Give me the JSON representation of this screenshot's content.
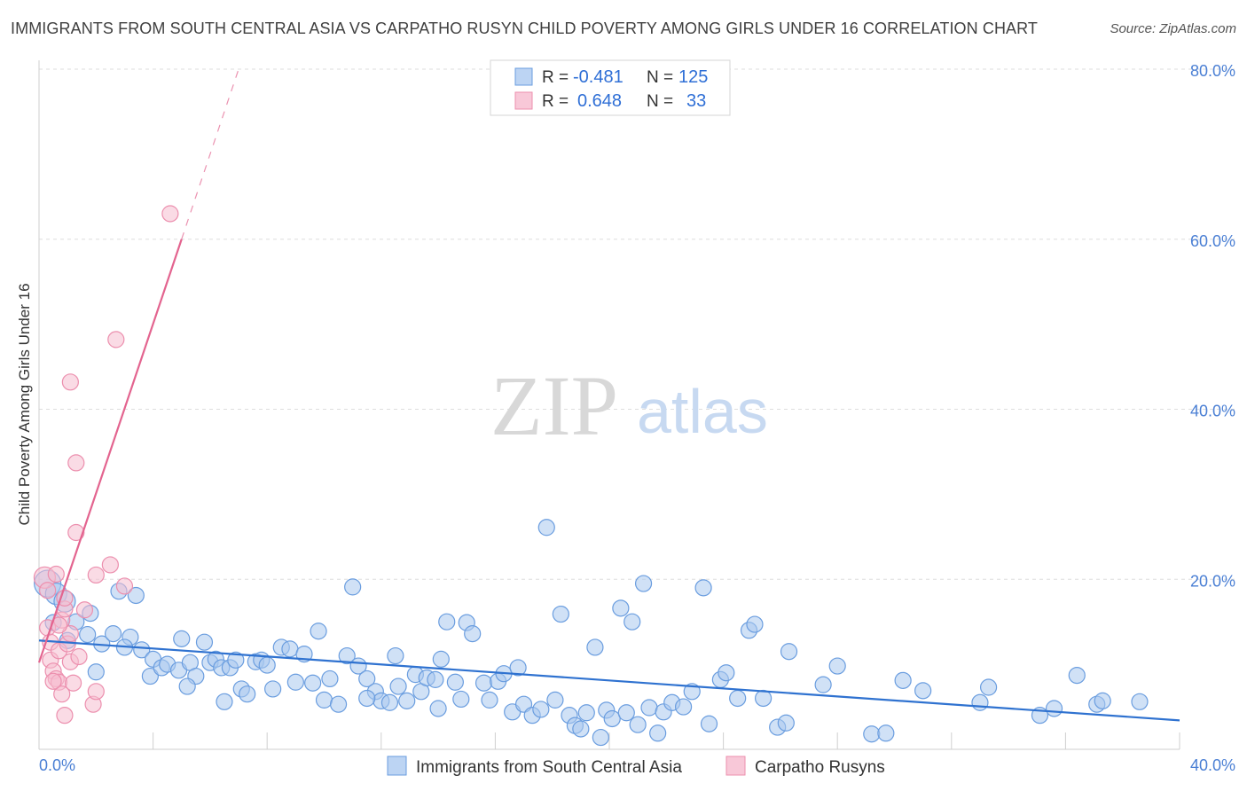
{
  "header": {
    "title": "IMMIGRANTS FROM SOUTH CENTRAL ASIA VS CARPATHO RUSYN CHILD POVERTY AMONG GIRLS UNDER 16 CORRELATION CHART",
    "source": "Source: ZipAtlas.com"
  },
  "watermark": {
    "zip": "ZIP",
    "atlas": "atlas"
  },
  "legend": {
    "rows": [
      {
        "r_label": "R =",
        "r_value": "-0.481",
        "n_label": "N =",
        "n_value": "125"
      },
      {
        "r_label": "R =",
        "r_value": "0.648",
        "n_label": "N =",
        "n_value": "33"
      }
    ]
  },
  "colors": {
    "blue_fill": "#a9c8ef",
    "blue_stroke": "#6a9ddf",
    "blue_line": "#2f72d0",
    "pink_fill": "#f6bdd0",
    "pink_stroke": "#ec8fae",
    "pink_line": "#e3648f",
    "grid": "#dddddd",
    "tick_text": "#4a7fd4"
  },
  "chart_data": {
    "type": "scatter",
    "title": "IMMIGRANTS FROM SOUTH CENTRAL ASIA VS CARPATHO RUSYN CHILD POVERTY AMONG GIRLS UNDER 16 CORRELATION CHART",
    "xlabel": "",
    "ylabel": "Child Poverty Among Girls Under 16",
    "xlim": [
      0,
      40
    ],
    "ylim": [
      0,
      80
    ],
    "x_tick_labels": [
      "0.0%",
      "40.0%"
    ],
    "y_ticks": [
      20,
      40,
      60,
      80
    ],
    "y_tick_labels": [
      "20.0%",
      "40.0%",
      "60.0%",
      "80.0%"
    ],
    "legend_position": "top-center",
    "series": [
      {
        "name": "Immigrants from South Central Asia",
        "color": "blue",
        "r": -0.481,
        "n": 125,
        "trend": {
          "x": [
            0,
            40
          ],
          "y": [
            12.8,
            3.4
          ],
          "dashed_extension": false
        },
        "points": [
          [
            0.3,
            19.5,
            3
          ],
          [
            0.6,
            18.3,
            2
          ],
          [
            0.9,
            17.4,
            2
          ],
          [
            1.3,
            15.0,
            1
          ],
          [
            1.7,
            13.5,
            1
          ],
          [
            1.8,
            16.0,
            1
          ],
          [
            2.2,
            12.4,
            1
          ],
          [
            2.6,
            13.6,
            1
          ],
          [
            3.2,
            13.2,
            1
          ],
          [
            3.4,
            18.1,
            1
          ],
          [
            3.0,
            12.0,
            1
          ],
          [
            3.6,
            11.7,
            1
          ],
          [
            3.9,
            8.6,
            1
          ],
          [
            4.0,
            10.6,
            1
          ],
          [
            4.3,
            9.6,
            1
          ],
          [
            4.5,
            10.0,
            1
          ],
          [
            4.9,
            9.3,
            1
          ],
          [
            5.0,
            13.0,
            1
          ],
          [
            5.3,
            10.2,
            1
          ],
          [
            5.5,
            8.6,
            1
          ],
          [
            5.8,
            12.6,
            1
          ],
          [
            6.0,
            10.2,
            1
          ],
          [
            6.2,
            10.6,
            1
          ],
          [
            6.4,
            9.6,
            1
          ],
          [
            6.7,
            9.6,
            1
          ],
          [
            6.9,
            10.5,
            1
          ],
          [
            7.1,
            7.1,
            1
          ],
          [
            7.3,
            6.5,
            1
          ],
          [
            7.6,
            10.3,
            1
          ],
          [
            7.8,
            10.5,
            1
          ],
          [
            8.0,
            9.9,
            1
          ],
          [
            8.2,
            7.1,
            1
          ],
          [
            8.5,
            12.0,
            1
          ],
          [
            8.8,
            11.8,
            1
          ],
          [
            9.0,
            7.9,
            1
          ],
          [
            9.3,
            11.2,
            1
          ],
          [
            9.6,
            7.8,
            1
          ],
          [
            9.8,
            13.9,
            1
          ],
          [
            10.0,
            5.8,
            1
          ],
          [
            10.2,
            8.3,
            1
          ],
          [
            10.5,
            5.3,
            1
          ],
          [
            10.8,
            11.0,
            1
          ],
          [
            11.0,
            19.1,
            1
          ],
          [
            11.2,
            9.8,
            1
          ],
          [
            11.5,
            8.3,
            1
          ],
          [
            11.8,
            6.8,
            1
          ],
          [
            12.0,
            5.7,
            1
          ],
          [
            12.3,
            5.5,
            1
          ],
          [
            12.6,
            7.4,
            1
          ],
          [
            12.9,
            5.7,
            1
          ],
          [
            13.2,
            8.8,
            1
          ],
          [
            13.4,
            6.8,
            1
          ],
          [
            13.6,
            8.4,
            1
          ],
          [
            13.9,
            8.2,
            1
          ],
          [
            14.1,
            10.6,
            1
          ],
          [
            14.3,
            15.0,
            1
          ],
          [
            14.6,
            7.9,
            1
          ],
          [
            14.8,
            5.9,
            1
          ],
          [
            15.0,
            14.9,
            1
          ],
          [
            15.2,
            13.6,
            1
          ],
          [
            15.6,
            7.8,
            1
          ],
          [
            15.8,
            5.8,
            1
          ],
          [
            16.1,
            8.0,
            1
          ],
          [
            16.3,
            8.9,
            1
          ],
          [
            16.6,
            4.4,
            1
          ],
          [
            16.8,
            9.6,
            1
          ],
          [
            17.0,
            5.3,
            1
          ],
          [
            17.3,
            4.0,
            1
          ],
          [
            17.6,
            4.7,
            1
          ],
          [
            17.8,
            26.1,
            1
          ],
          [
            18.1,
            5.8,
            1
          ],
          [
            18.3,
            15.9,
            1
          ],
          [
            18.6,
            4.0,
            1
          ],
          [
            18.8,
            2.8,
            1
          ],
          [
            19.0,
            2.4,
            1
          ],
          [
            19.2,
            4.3,
            1
          ],
          [
            19.5,
            12.0,
            1
          ],
          [
            19.7,
            1.4,
            1
          ],
          [
            19.9,
            4.6,
            1
          ],
          [
            20.1,
            3.6,
            1
          ],
          [
            20.4,
            16.6,
            1
          ],
          [
            20.6,
            4.3,
            1
          ],
          [
            20.8,
            15.0,
            1
          ],
          [
            21.0,
            2.9,
            1
          ],
          [
            21.2,
            19.5,
            1
          ],
          [
            21.4,
            4.9,
            1
          ],
          [
            21.7,
            1.9,
            1
          ],
          [
            21.9,
            4.4,
            1
          ],
          [
            22.2,
            5.5,
            1
          ],
          [
            22.6,
            5.0,
            1
          ],
          [
            23.3,
            19.0,
            1
          ],
          [
            23.5,
            3.0,
            1
          ],
          [
            23.9,
            8.2,
            1
          ],
          [
            24.1,
            9.0,
            1
          ],
          [
            24.5,
            6.0,
            1
          ],
          [
            24.9,
            14.0,
            1
          ],
          [
            25.1,
            14.7,
            1
          ],
          [
            25.4,
            6.0,
            1
          ],
          [
            25.9,
            2.6,
            1
          ],
          [
            26.2,
            3.1,
            1
          ],
          [
            26.3,
            11.5,
            1
          ],
          [
            27.5,
            7.6,
            1
          ],
          [
            28.0,
            9.8,
            1
          ],
          [
            29.2,
            1.8,
            1
          ],
          [
            29.7,
            1.9,
            1
          ],
          [
            30.3,
            8.1,
            1
          ],
          [
            31.0,
            6.9,
            1
          ],
          [
            33.0,
            5.5,
            1
          ],
          [
            33.3,
            7.3,
            1
          ],
          [
            35.1,
            4.0,
            1
          ],
          [
            35.6,
            4.8,
            1
          ],
          [
            36.4,
            8.7,
            1
          ],
          [
            37.1,
            5.3,
            1
          ],
          [
            37.3,
            5.7,
            1
          ],
          [
            38.6,
            5.6,
            1
          ],
          [
            2.0,
            9.1,
            1
          ],
          [
            1.0,
            12.8,
            1
          ],
          [
            0.5,
            14.9,
            1
          ],
          [
            2.8,
            18.6,
            1
          ],
          [
            5.2,
            7.4,
            1
          ],
          [
            6.5,
            5.6,
            1
          ],
          [
            11.5,
            6.0,
            1
          ],
          [
            14.0,
            4.8,
            1
          ],
          [
            22.9,
            6.8,
            1
          ],
          [
            12.5,
            11.0,
            1
          ]
        ]
      },
      {
        "name": "Carpatho Rusyns",
        "color": "pink",
        "r": 0.648,
        "n": 33,
        "trend": {
          "x": [
            0,
            5.0,
            7.0
          ],
          "y": [
            10.2,
            60.0,
            80.0
          ],
          "dashed_extension": true
        },
        "points": [
          [
            0.2,
            20.2,
            2
          ],
          [
            0.3,
            18.7,
            1
          ],
          [
            0.3,
            14.3,
            1
          ],
          [
            0.4,
            12.6,
            1
          ],
          [
            0.4,
            10.5,
            1
          ],
          [
            0.5,
            9.2,
            1
          ],
          [
            0.6,
            8.3,
            1
          ],
          [
            0.7,
            7.9,
            1
          ],
          [
            0.7,
            11.6,
            1
          ],
          [
            0.8,
            15.2,
            1
          ],
          [
            0.8,
            6.5,
            1
          ],
          [
            0.9,
            16.5,
            1
          ],
          [
            0.9,
            4.0,
            1
          ],
          [
            1.0,
            12.4,
            1
          ],
          [
            1.1,
            10.3,
            1
          ],
          [
            1.1,
            13.6,
            1
          ],
          [
            0.6,
            20.6,
            1
          ],
          [
            0.7,
            14.6,
            1
          ],
          [
            0.9,
            17.8,
            1
          ],
          [
            1.1,
            43.2,
            1
          ],
          [
            1.2,
            7.8,
            1
          ],
          [
            1.3,
            33.7,
            1
          ],
          [
            1.3,
            25.5,
            1
          ],
          [
            1.4,
            10.9,
            1
          ],
          [
            1.6,
            16.4,
            1
          ],
          [
            1.9,
            5.3,
            1
          ],
          [
            2.0,
            6.8,
            1
          ],
          [
            2.0,
            20.5,
            1
          ],
          [
            2.5,
            21.7,
            1
          ],
          [
            2.7,
            48.2,
            1
          ],
          [
            3.0,
            19.2,
            1
          ],
          [
            4.6,
            63.0,
            1
          ],
          [
            0.5,
            8.0,
            1
          ]
        ]
      }
    ]
  },
  "bottom_legend": {
    "items": [
      "Immigrants from South Central Asia",
      "Carpatho Rusyns"
    ]
  }
}
